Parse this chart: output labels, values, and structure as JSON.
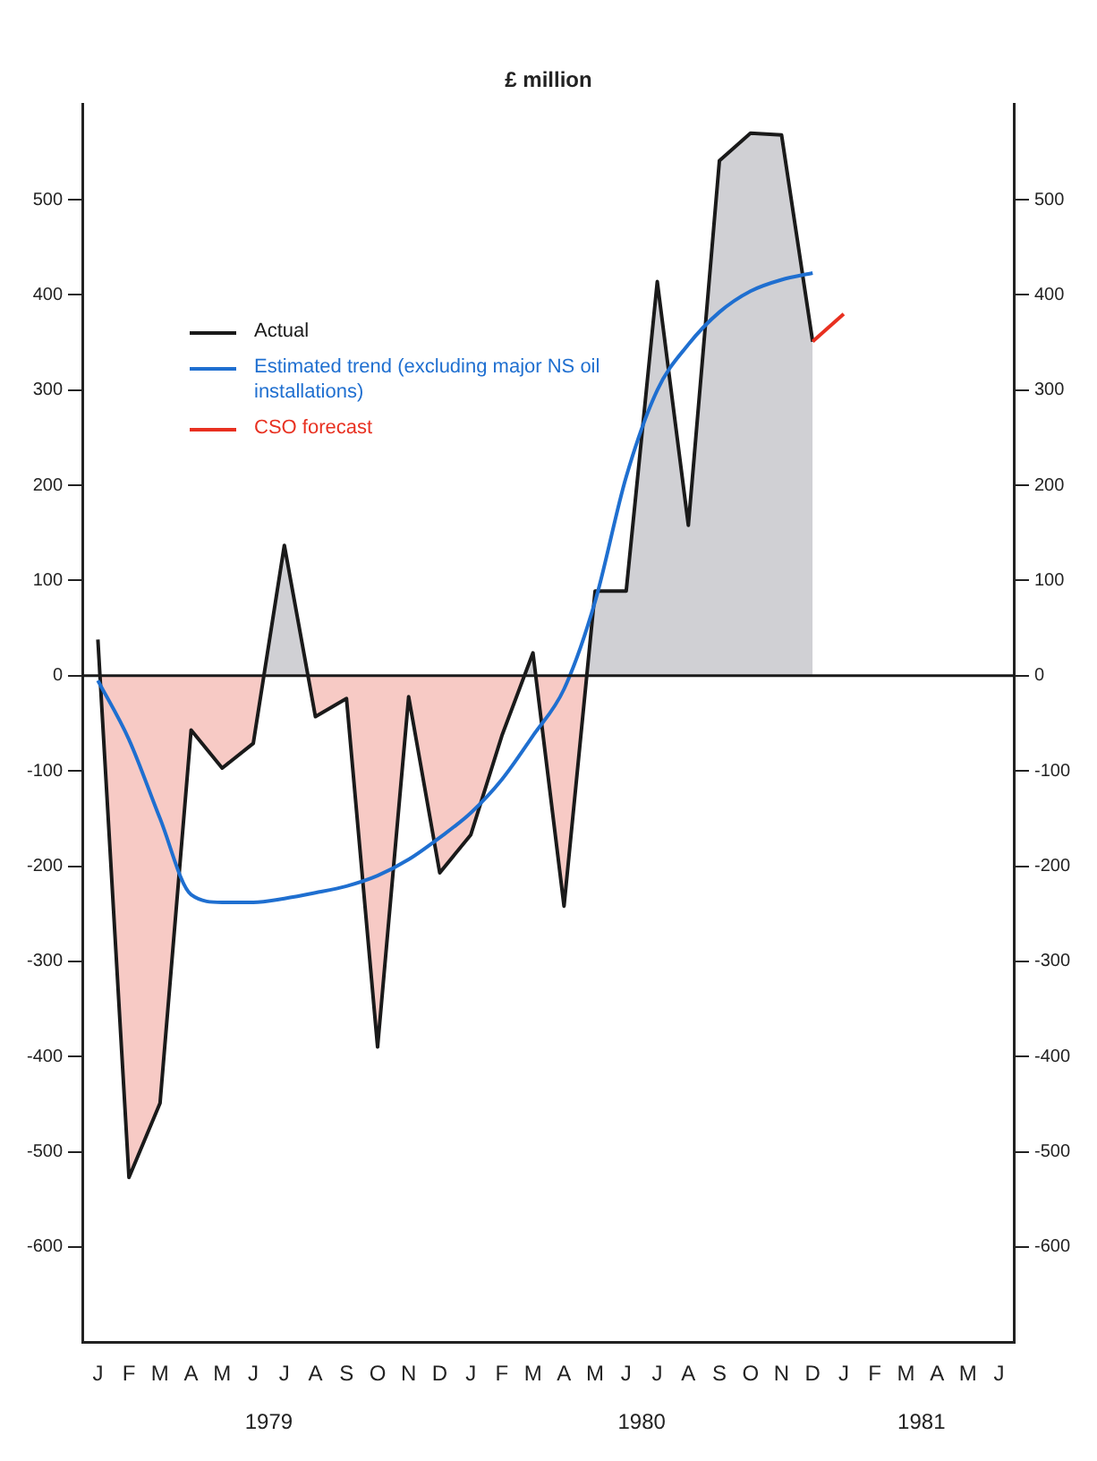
{
  "chart_data": {
    "type": "line",
    "title": "£ million",
    "categories": [
      "J",
      "F",
      "M",
      "A",
      "M",
      "J",
      "J",
      "A",
      "S",
      "O",
      "N",
      "D",
      "J",
      "F",
      "M",
      "A",
      "M",
      "J",
      "J",
      "A",
      "S",
      "O",
      "N",
      "D",
      "J",
      "F",
      "M",
      "A",
      "M",
      "J"
    ],
    "series": [
      {
        "name": "Actual",
        "type": "area",
        "color": "#1a1a1a",
        "values": [
          38,
          -527,
          -449,
          -57,
          -97,
          -71,
          137,
          -43,
          -24,
          -390,
          -22,
          -207,
          -167,
          -63,
          24,
          -242,
          89,
          89,
          414,
          158,
          541,
          570,
          568,
          351,
          null,
          null,
          null,
          null,
          null,
          null
        ]
      },
      {
        "name": "Estimated trend (excluding major NS oil installations)",
        "color": "#1f6fd0",
        "values": [
          -5,
          -67,
          -150,
          -230,
          -238,
          -238,
          -234,
          -228,
          -221,
          -210,
          -193,
          -170,
          -144,
          -109,
          -63,
          -14,
          78,
          209,
          300,
          348,
          382,
          404,
          416,
          423,
          null,
          null,
          null,
          null,
          null,
          null
        ]
      },
      {
        "name": "CSO forecast",
        "color": "#e83020",
        "values": [
          null,
          null,
          null,
          null,
          null,
          null,
          null,
          null,
          null,
          null,
          null,
          null,
          null,
          null,
          null,
          null,
          null,
          null,
          null,
          null,
          null,
          null,
          null,
          351,
          380,
          null,
          null,
          null,
          null,
          null
        ]
      }
    ],
    "ylim": [
      -700,
      600
    ],
    "yticks": [
      -600,
      -500,
      -400,
      -300,
      -200,
      -100,
      0,
      100,
      200,
      300,
      400,
      500
    ],
    "y2lim": [
      -700,
      600
    ],
    "y2ticks": [
      -600,
      -500,
      -400,
      -300,
      -200,
      -100,
      0,
      100,
      200,
      300,
      400,
      500
    ],
    "ref_lines": [
      {
        "axis": "y",
        "value": 0,
        "color": "#1a1a1a"
      }
    ],
    "annotations": [
      "1979",
      "1980",
      "1981"
    ],
    "grid": false,
    "legend": "top left",
    "marker": "none",
    "line_style": "solid"
  }
}
